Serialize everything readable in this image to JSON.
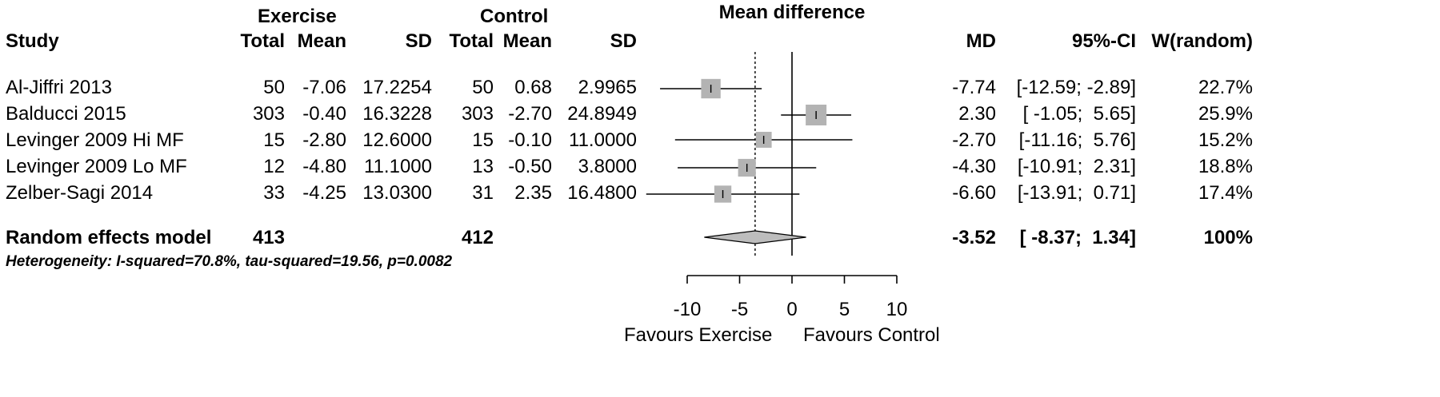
{
  "header": {
    "exercise_label": "Exercise",
    "control_label": "Control",
    "plot_title": "Mean difference",
    "study": "Study",
    "total_e": "Total",
    "mean_e": "Mean",
    "sd_e": "SD",
    "total_c": "Total",
    "mean_c": "Mean",
    "sd_c": "SD",
    "md": "MD",
    "ci": "95%-CI",
    "weight": "W(random)"
  },
  "studies": [
    {
      "name": "Al-Jiffri 2013",
      "total_e": "50",
      "mean_e": "-7.06",
      "sd_e": "17.2254",
      "total_c": "50",
      "mean_c": "0.68",
      "sd_c": "2.9965",
      "md_text": "-7.74",
      "ci_text": "[-12.59; -2.89]",
      "weight_text": "22.7%"
    },
    {
      "name": "Balducci 2015",
      "total_e": "303",
      "mean_e": "-0.40",
      "sd_e": "16.3228",
      "total_c": "303",
      "mean_c": "-2.70",
      "sd_c": "24.8949",
      "md_text": "2.30",
      "ci_text": "[ -1.05;  5.65]",
      "weight_text": "25.9%"
    },
    {
      "name": "Levinger 2009 Hi MF",
      "total_e": "15",
      "mean_e": "-2.80",
      "sd_e": "12.6000",
      "total_c": "15",
      "mean_c": "-0.10",
      "sd_c": "11.0000",
      "md_text": "-2.70",
      "ci_text": "[-11.16;  5.76]",
      "weight_text": "15.2%"
    },
    {
      "name": "Levinger 2009 Lo MF",
      "total_e": "12",
      "mean_e": "-4.80",
      "sd_e": "11.1000",
      "total_c": "13",
      "mean_c": "-0.50",
      "sd_c": "3.8000",
      "md_text": "-4.30",
      "ci_text": "[-10.91;  2.31]",
      "weight_text": "18.8%"
    },
    {
      "name": "Zelber-Sagi 2014",
      "total_e": "33",
      "mean_e": "-4.25",
      "sd_e": "13.0300",
      "total_c": "31",
      "mean_c": "2.35",
      "sd_c": "16.4800",
      "md_text": "-6.60",
      "ci_text": "[-13.91;  0.71]",
      "weight_text": "17.4%"
    }
  ],
  "summary": {
    "label": "Random effects model",
    "total_e": "413",
    "total_c": "412",
    "md_text": "-3.52",
    "ci_text": "[ -8.37;  1.34]",
    "weight_text": "100%"
  },
  "heterogeneity": "Heterogeneity: I-squared=70.8%, tau-squared=19.56, p=0.0082",
  "axis": {
    "favours_left": "Favours Exercise",
    "favours_right": "Favours Control"
  },
  "chart_data": {
    "type": "forest",
    "xlim": [
      -10,
      10
    ],
    "ticks": [
      -10,
      -5,
      0,
      5,
      10
    ],
    "tick_labels": [
      "-10",
      "-5",
      "0",
      "5",
      "10"
    ],
    "null_line": 0,
    "summary_line": -3.52,
    "box_color": "#b3b3b3",
    "diamond_color": "#bdbdbd",
    "studies": [
      {
        "md": -7.74,
        "lower": -12.59,
        "upper": -2.89,
        "weight": 22.7
      },
      {
        "md": 2.3,
        "lower": -1.05,
        "upper": 5.65,
        "weight": 25.9
      },
      {
        "md": -2.7,
        "lower": -11.16,
        "upper": 5.76,
        "weight": 15.2
      },
      {
        "md": -4.3,
        "lower": -10.91,
        "upper": 2.31,
        "weight": 18.8
      },
      {
        "md": -6.6,
        "lower": -13.91,
        "upper": 0.71,
        "weight": 17.4
      }
    ],
    "summary": {
      "md": -3.52,
      "lower": -8.37,
      "upper": 1.34
    }
  }
}
